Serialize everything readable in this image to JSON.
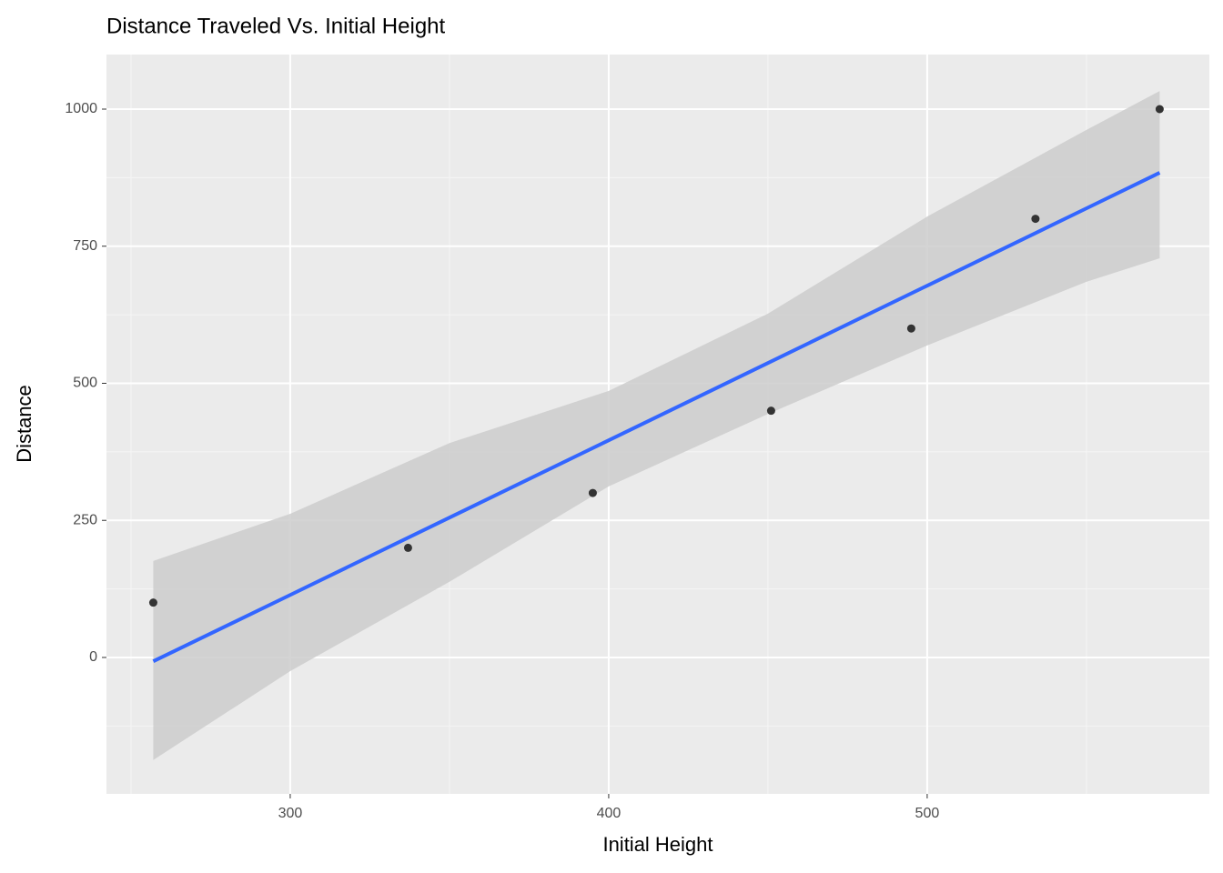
{
  "chart_data": {
    "type": "scatter",
    "title": "Distance Traveled Vs. Initial Height",
    "x_label": "Initial Height",
    "y_label": "Distance",
    "points": {
      "x": [
        257,
        337,
        395,
        451,
        495,
        534,
        573
      ],
      "y": [
        100,
        200,
        300,
        450,
        600,
        800,
        1000
      ],
      "color": "#333333"
    },
    "fit": {
      "color": "#3366ff",
      "band_color": "#cccccc",
      "x": [
        257,
        300,
        350,
        400,
        450,
        500,
        550,
        573
      ],
      "y": [
        -7,
        114,
        255,
        396,
        537,
        678,
        819,
        884
      ],
      "lower": [
        -187,
        -25,
        138,
        312,
        444,
        569,
        685,
        728
      ],
      "upper": [
        176,
        262,
        391,
        486,
        627,
        804,
        962,
        1033
      ]
    },
    "xlim": [
      242.3,
      588.6
    ],
    "ylim": [
      -248.8,
      1099.5
    ],
    "xticks": [
      300,
      400,
      500
    ],
    "yticks": [
      0,
      250,
      500,
      750,
      1000
    ],
    "grid": true
  }
}
